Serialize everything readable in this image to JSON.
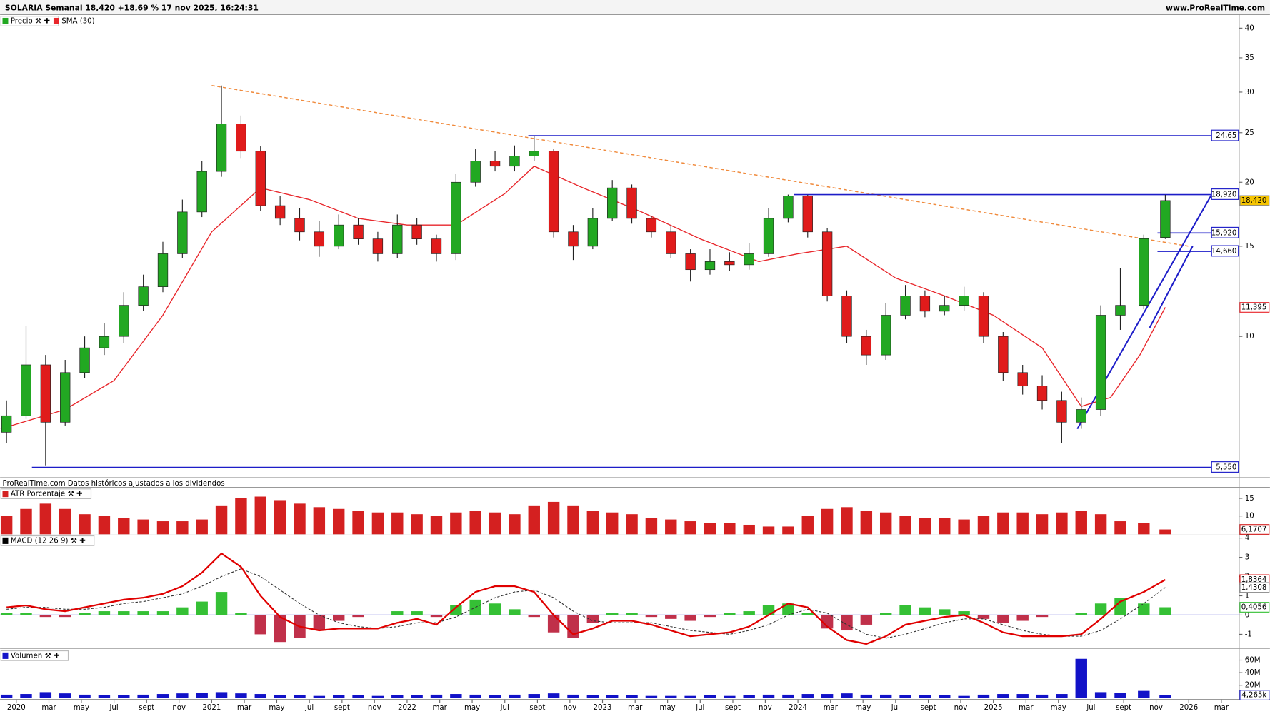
{
  "header": {
    "title": "SOLARIA Semanal 18,420 +18,69 % 17 nov 2025, 16:24:31",
    "site": "www.ProRealTime.com",
    "note": "ProRealTime.com Datos históricos ajustados a los dividendos"
  },
  "chart_data": [
    {
      "type": "candlestick",
      "name": "Precio",
      "log": true,
      "colors": {
        "up": "#22a822",
        "down": "#e01b1b"
      },
      "xlim": [
        2019.917,
        2026.258
      ],
      "ylim": [
        5.3,
        42.2
      ],
      "yticks": [
        10,
        15,
        20,
        25,
        30,
        35,
        40
      ],
      "x": [
        2019.95,
        2020.05,
        2020.15,
        2020.25,
        2020.35,
        2020.45,
        2020.55,
        2020.65,
        2020.75,
        2020.85,
        2020.95,
        2021.05,
        2021.15,
        2021.25,
        2021.35,
        2021.45,
        2021.55,
        2021.65,
        2021.75,
        2021.85,
        2021.95,
        2022.05,
        2022.15,
        2022.25,
        2022.35,
        2022.45,
        2022.55,
        2022.65,
        2022.75,
        2022.85,
        2022.95,
        2023.05,
        2023.15,
        2023.25,
        2023.35,
        2023.45,
        2023.55,
        2023.65,
        2023.75,
        2023.85,
        2023.95,
        2024.05,
        2024.15,
        2024.25,
        2024.35,
        2024.45,
        2024.55,
        2024.65,
        2024.75,
        2024.85,
        2024.95,
        2025.05,
        2025.15,
        2025.25,
        2025.35,
        2025.45,
        2025.55,
        2025.65,
        2025.77,
        2025.88
      ],
      "open": [
        6.5,
        7.0,
        8.8,
        6.8,
        8.5,
        9.5,
        10.0,
        11.5,
        12.5,
        14.5,
        17.5,
        21,
        26,
        23,
        18,
        17,
        16,
        15,
        16.5,
        15.5,
        14.5,
        16.5,
        15.5,
        14.5,
        20,
        22,
        21.5,
        22.5,
        23,
        16,
        15,
        17,
        19.5,
        17,
        16,
        14.5,
        13.5,
        14,
        13.8,
        14.5,
        17,
        18.8,
        16,
        12,
        10,
        9.2,
        11,
        12,
        11.2,
        11.5,
        12,
        10,
        8.5,
        8.0,
        7.5,
        6.8,
        7.2,
        11,
        11.5,
        15.6
      ],
      "high": [
        7.5,
        10.5,
        9.2,
        9.0,
        10.0,
        10.6,
        12.2,
        13.2,
        15.3,
        18.5,
        22,
        30.9,
        27,
        23.5,
        18.8,
        17.8,
        16.8,
        17.3,
        17,
        16,
        17.3,
        17,
        15.8,
        20.8,
        23.2,
        23,
        23.6,
        24.65,
        23.2,
        16.5,
        17.8,
        20.2,
        19.8,
        17.2,
        16.4,
        14.8,
        14.8,
        14.6,
        15.2,
        17.8,
        18.92,
        18.9,
        16.3,
        12.3,
        10.3,
        11.6,
        12.6,
        12.3,
        12.0,
        12.5,
        12.2,
        10.2,
        8.8,
        8.4,
        7.8,
        7.6,
        11.5,
        13.6,
        15.8,
        18.9
      ],
      "low": [
        6.2,
        6.9,
        5.6,
        6.7,
        8.3,
        9.2,
        9.7,
        11.2,
        12.2,
        14.2,
        17.1,
        20.5,
        22.3,
        17.6,
        16.5,
        15.4,
        14.3,
        14.8,
        15.1,
        14.0,
        14.2,
        15.1,
        14.0,
        14.1,
        19.6,
        21.0,
        21.0,
        22.0,
        15.6,
        14.1,
        14.8,
        16.8,
        16.6,
        15.6,
        14.2,
        12.8,
        13.2,
        13.4,
        13.5,
        14.3,
        16.7,
        15.6,
        11.7,
        9.7,
        8.8,
        9.0,
        10.8,
        10.9,
        11.0,
        11.2,
        9.7,
        8.2,
        7.7,
        7.2,
        6.2,
        6.6,
        7.0,
        10.3,
        11.3,
        15.5
      ],
      "close": [
        7.0,
        8.8,
        6.8,
        8.5,
        9.5,
        10.0,
        11.5,
        12.5,
        14.5,
        17.5,
        21,
        26,
        23,
        18,
        17,
        16,
        15,
        16.5,
        15.5,
        14.5,
        16.5,
        15.5,
        14.5,
        20,
        22,
        21.5,
        22.5,
        23,
        16,
        15,
        17,
        19.5,
        17,
        16,
        14.5,
        13.5,
        14,
        13.8,
        14.5,
        17,
        18.8,
        16,
        12,
        10,
        9.2,
        11,
        12,
        11.2,
        11.5,
        12,
        10,
        8.5,
        8.0,
        7.5,
        6.8,
        7.2,
        11,
        11.5,
        15.52,
        18.42
      ],
      "last_label": "18,420",
      "sma": {
        "name": "SMA (30)",
        "color": "#e8262b",
        "last_label": "11,395",
        "x": [
          2019.92,
          2020.25,
          2020.5,
          2020.75,
          2021.0,
          2021.25,
          2021.5,
          2021.75,
          2022.0,
          2022.25,
          2022.5,
          2022.65,
          2022.9,
          2023.2,
          2023.5,
          2023.8,
          2024.0,
          2024.25,
          2024.5,
          2024.75,
          2025.0,
          2025.25,
          2025.45,
          2025.6,
          2025.75,
          2025.88
        ],
        "values": [
          6.6,
          7.2,
          8.2,
          11,
          16,
          19.5,
          18.5,
          17,
          16.5,
          16.5,
          19,
          21.5,
          19.5,
          17.5,
          15.5,
          14,
          14.5,
          15,
          13,
          12,
          11,
          9.5,
          7.3,
          7.6,
          9.2,
          11.395
        ]
      },
      "levels": [
        {
          "value": 24.65,
          "label": "24,65",
          "x0": 2022.62,
          "color": "#1c1cc8"
        },
        {
          "value": 18.92,
          "label": "18,920",
          "x0": 2023.98,
          "color": "#1c1cc8"
        },
        {
          "value": 15.92,
          "label": "15,920",
          "x0": 2025.84,
          "color": "#1c1cc8"
        },
        {
          "value": 14.66,
          "label": "14,660",
          "x0": 2025.84,
          "color": "#1c1cc8"
        },
        {
          "value": 5.55,
          "label": "5,550",
          "x0": 2020.08,
          "color": "#1c1cc8"
        }
      ],
      "trendlines": [
        {
          "color": "#f08a3c",
          "dashed": true,
          "x": [
            2021.0,
            2026.0
          ],
          "y": [
            30.9,
            15.0
          ]
        },
        {
          "color": "#1c1cc8",
          "dashed": false,
          "x": [
            2025.43,
            2026.12
          ],
          "y": [
            6.6,
            19.0
          ]
        },
        {
          "color": "#1c1cc8",
          "dashed": false,
          "x": [
            2025.8,
            2026.02
          ],
          "y": [
            10.4,
            15.0
          ]
        }
      ]
    },
    {
      "type": "bar",
      "name": "ATR Porcentaje",
      "color": "#d42020",
      "xlim": [
        2019.917,
        2026.258
      ],
      "ylim": [
        4.8,
        17.9
      ],
      "yticks": [
        10,
        15
      ],
      "x": [
        2019.95,
        2020.05,
        2020.15,
        2020.25,
        2020.35,
        2020.45,
        2020.55,
        2020.65,
        2020.75,
        2020.85,
        2020.95,
        2021.05,
        2021.15,
        2021.25,
        2021.35,
        2021.45,
        2021.55,
        2021.65,
        2021.75,
        2021.85,
        2021.95,
        2022.05,
        2022.15,
        2022.25,
        2022.35,
        2022.45,
        2022.55,
        2022.65,
        2022.75,
        2022.85,
        2022.95,
        2023.05,
        2023.15,
        2023.25,
        2023.35,
        2023.45,
        2023.55,
        2023.65,
        2023.75,
        2023.85,
        2023.95,
        2024.05,
        2024.15,
        2024.25,
        2024.35,
        2024.45,
        2024.55,
        2024.65,
        2024.75,
        2024.85,
        2024.95,
        2025.05,
        2025.15,
        2025.25,
        2025.35,
        2025.45,
        2025.55,
        2025.65,
        2025.77,
        2025.88
      ],
      "values": [
        10,
        12,
        13.5,
        12,
        10.5,
        10,
        9.5,
        9,
        8.5,
        8.5,
        9,
        13,
        15,
        15.5,
        14.5,
        13.5,
        12.5,
        12,
        11.5,
        11,
        11,
        10.5,
        10,
        11,
        11.5,
        11,
        10.5,
        13,
        14,
        13,
        11.5,
        11,
        10.5,
        9.5,
        9,
        8.5,
        8,
        8,
        7.5,
        7,
        7,
        10,
        12,
        12.5,
        11.5,
        11,
        10,
        9.5,
        9.5,
        9,
        10,
        11,
        11,
        10.5,
        11,
        11.5,
        10.5,
        8.5,
        8,
        6.1707
      ],
      "last_label": "6,1707"
    },
    {
      "type": "macd",
      "name": "MACD (12 26 9)",
      "xlim": [
        2019.917,
        2026.258
      ],
      "ylim": [
        -1.69,
        4.07
      ],
      "yticks": [
        -1,
        0,
        1,
        2,
        3,
        4
      ],
      "x": [
        2019.95,
        2020.05,
        2020.15,
        2020.25,
        2020.35,
        2020.45,
        2020.55,
        2020.65,
        2020.75,
        2020.85,
        2020.95,
        2021.05,
        2021.15,
        2021.25,
        2021.35,
        2021.45,
        2021.55,
        2021.65,
        2021.75,
        2021.85,
        2021.95,
        2022.05,
        2022.15,
        2022.25,
        2022.35,
        2022.45,
        2022.55,
        2022.65,
        2022.75,
        2022.85,
        2022.95,
        2023.05,
        2023.15,
        2023.25,
        2023.35,
        2023.45,
        2023.55,
        2023.65,
        2023.75,
        2023.85,
        2023.95,
        2024.05,
        2024.15,
        2024.25,
        2024.35,
        2024.45,
        2024.55,
        2024.65,
        2024.75,
        2024.85,
        2024.95,
        2025.05,
        2025.15,
        2025.25,
        2025.35,
        2025.45,
        2025.55,
        2025.65,
        2025.77,
        2025.88
      ],
      "macd": {
        "color": "#e00000",
        "last_label": "1,8364",
        "values": [
          0.4,
          0.5,
          0.3,
          0.2,
          0.4,
          0.6,
          0.8,
          0.9,
          1.1,
          1.5,
          2.2,
          3.2,
          2.5,
          1.0,
          -0.1,
          -0.6,
          -0.8,
          -0.7,
          -0.7,
          -0.7,
          -0.4,
          -0.2,
          -0.5,
          0.4,
          1.2,
          1.5,
          1.5,
          1.2,
          0.0,
          -1.0,
          -0.7,
          -0.3,
          -0.3,
          -0.5,
          -0.8,
          -1.1,
          -1.0,
          -0.9,
          -0.6,
          0.0,
          0.6,
          0.4,
          -0.6,
          -1.3,
          -1.5,
          -1.1,
          -0.5,
          -0.3,
          -0.1,
          0.0,
          -0.4,
          -0.9,
          -1.1,
          -1.1,
          -1.1,
          -1.0,
          -0.2,
          0.7,
          1.2,
          1.8364
        ]
      },
      "signal": {
        "color": "#333333",
        "dashed": true,
        "last_label": "1,4308",
        "values": [
          0.3,
          0.4,
          0.4,
          0.3,
          0.3,
          0.4,
          0.6,
          0.7,
          0.9,
          1.1,
          1.5,
          2.0,
          2.4,
          2.0,
          1.3,
          0.6,
          0.0,
          -0.4,
          -0.6,
          -0.7,
          -0.6,
          -0.4,
          -0.4,
          -0.1,
          0.4,
          0.9,
          1.2,
          1.3,
          0.9,
          0.2,
          -0.3,
          -0.4,
          -0.4,
          -0.4,
          -0.6,
          -0.8,
          -0.9,
          -1.0,
          -0.8,
          -0.5,
          0.0,
          0.3,
          0.1,
          -0.5,
          -1.0,
          -1.2,
          -1.0,
          -0.7,
          -0.4,
          -0.2,
          -0.2,
          -0.5,
          -0.8,
          -1.0,
          -1.1,
          -1.1,
          -0.8,
          -0.2,
          0.6,
          1.4308
        ]
      },
      "histogram": {
        "color": "#35c035",
        "down_color": "#c0304a",
        "last_label": "0,4056",
        "values": [
          0.1,
          0.1,
          -0.1,
          -0.1,
          0.1,
          0.2,
          0.2,
          0.2,
          0.2,
          0.4,
          0.7,
          1.2,
          0.1,
          -1.0,
          -1.4,
          -1.2,
          -0.8,
          -0.3,
          -0.1,
          0,
          0.2,
          0.2,
          -0.1,
          0.5,
          0.8,
          0.6,
          0.3,
          -0.1,
          -0.9,
          -1.2,
          -0.4,
          0.1,
          0.1,
          -0.1,
          -0.2,
          -0.3,
          -0.1,
          0.1,
          0.2,
          0.5,
          0.6,
          0.1,
          -0.7,
          -0.8,
          -0.5,
          0.1,
          0.5,
          0.4,
          0.3,
          0.2,
          -0.2,
          -0.4,
          -0.3,
          -0.1,
          0,
          0.1,
          0.6,
          0.9,
          0.6,
          0.4056
        ]
      }
    },
    {
      "type": "bar",
      "name": "Volumen",
      "color": "#1212c8",
      "xlim": [
        2019.917,
        2026.258
      ],
      "ylim": [
        0,
        76000000
      ],
      "yticks": [
        {
          "value": 20000000,
          "label": "20M"
        },
        {
          "value": 40000000,
          "label": "40M"
        },
        {
          "value": 60000000,
          "label": "60M"
        }
      ],
      "x": [
        2019.95,
        2020.05,
        2020.15,
        2020.25,
        2020.35,
        2020.45,
        2020.55,
        2020.65,
        2020.75,
        2020.85,
        2020.95,
        2021.05,
        2021.15,
        2021.25,
        2021.35,
        2021.45,
        2021.55,
        2021.65,
        2021.75,
        2021.85,
        2021.95,
        2022.05,
        2022.15,
        2022.25,
        2022.35,
        2022.45,
        2022.55,
        2022.65,
        2022.75,
        2022.85,
        2022.95,
        2023.05,
        2023.15,
        2023.25,
        2023.35,
        2023.45,
        2023.55,
        2023.65,
        2023.75,
        2023.85,
        2023.95,
        2024.05,
        2024.15,
        2024.25,
        2024.35,
        2024.45,
        2024.55,
        2024.65,
        2024.75,
        2024.85,
        2024.95,
        2025.05,
        2025.15,
        2025.25,
        2025.35,
        2025.45,
        2025.55,
        2025.65,
        2025.77,
        2025.88
      ],
      "values": [
        5000000,
        6000000,
        9000000,
        7000000,
        5000000,
        4000000,
        4000000,
        5000000,
        6000000,
        7000000,
        8000000,
        9000000,
        7000000,
        6000000,
        4000000,
        4000000,
        3000000,
        4000000,
        4000000,
        3000000,
        4000000,
        4000000,
        5000000,
        6000000,
        5000000,
        4000000,
        5000000,
        6000000,
        7000000,
        5000000,
        4000000,
        4000000,
        4000000,
        3000000,
        3000000,
        3000000,
        4000000,
        3000000,
        4000000,
        5000000,
        5000000,
        6000000,
        6000000,
        7000000,
        5000000,
        5000000,
        4000000,
        4000000,
        4000000,
        3000000,
        5000000,
        6000000,
        6000000,
        5000000,
        6000000,
        62000000,
        9000000,
        8000000,
        11000000,
        4265000
      ],
      "last_label": "4,265k",
      "xticks": [
        2020,
        {
          "value": 2020.167,
          "label": "mar"
        },
        {
          "value": 2020.333,
          "label": "may"
        },
        {
          "value": 2020.5,
          "label": "jul"
        },
        {
          "value": 2020.667,
          "label": "sept"
        },
        {
          "value": 2020.833,
          "label": "nov"
        },
        2021,
        {
          "value": 2021.167,
          "label": "mar"
        },
        {
          "value": 2021.333,
          "label": "may"
        },
        {
          "value": 2021.5,
          "label": "jul"
        },
        {
          "value": 2021.667,
          "label": "sept"
        },
        {
          "value": 2021.833,
          "label": "nov"
        },
        2022,
        {
          "value": 2022.167,
          "label": "mar"
        },
        {
          "value": 2022.333,
          "label": "may"
        },
        {
          "value": 2022.5,
          "label": "jul"
        },
        {
          "value": 2022.667,
          "label": "sept"
        },
        {
          "value": 2022.833,
          "label": "nov"
        },
        2023,
        {
          "value": 2023.167,
          "label": "mar"
        },
        {
          "value": 2023.333,
          "label": "may"
        },
        {
          "value": 2023.5,
          "label": "jul"
        },
        {
          "value": 2023.667,
          "label": "sept"
        },
        {
          "value": 2023.833,
          "label": "nov"
        },
        2024,
        {
          "value": 2024.167,
          "label": "mar"
        },
        {
          "value": 2024.333,
          "label": "may"
        },
        {
          "value": 2024.5,
          "label": "jul"
        },
        {
          "value": 2024.667,
          "label": "sept"
        },
        {
          "value": 2024.833,
          "label": "nov"
        },
        2025,
        {
          "value": 2025.167,
          "label": "mar"
        },
        {
          "value": 2025.333,
          "label": "may"
        },
        {
          "value": 2025.5,
          "label": "jul"
        },
        {
          "value": 2025.667,
          "label": "sept"
        },
        {
          "value": 2025.833,
          "label": "nov"
        },
        2026,
        {
          "value": 2026.167,
          "label": "mar"
        }
      ]
    }
  ]
}
